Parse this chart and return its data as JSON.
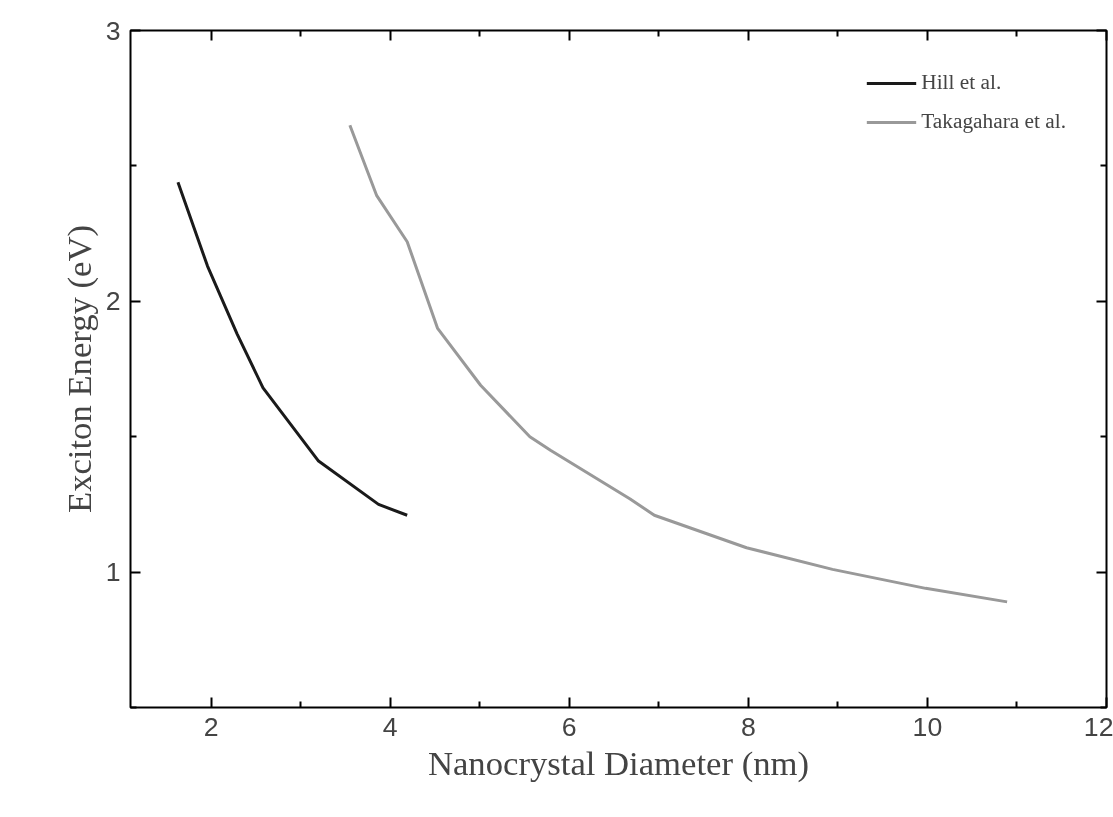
{
  "chart_data": {
    "type": "line",
    "xlabel": "Nanocrystal Diameter (nm)",
    "ylabel": "Exciton Energy (eV)",
    "xlim": [
      1.1,
      12
    ],
    "ylim": [
      0.5,
      3
    ],
    "xticks": [
      2,
      4,
      6,
      8,
      10,
      12
    ],
    "yticks": [
      1,
      2,
      3
    ],
    "grid": false,
    "legend": "top right",
    "marker": "none",
    "line_style": "solid",
    "series": [
      {
        "name": "Hill et al.",
        "color": "#1a1a1a",
        "x": [
          1.63,
          1.96,
          2.29,
          2.58,
          3.2,
          3.87,
          4.19
        ],
        "values": [
          2.44,
          2.13,
          1.88,
          1.68,
          1.41,
          1.25,
          1.21
        ]
      },
      {
        "name": "Takagahara et al.",
        "color": "#999999",
        "x": [
          3.55,
          3.85,
          4.19,
          4.53,
          5.01,
          5.56,
          5.79,
          6.68,
          6.95,
          7.98,
          8.94,
          9.98,
          10.89
        ],
        "values": [
          2.65,
          2.39,
          2.22,
          1.9,
          1.69,
          1.5,
          1.45,
          1.27,
          1.21,
          1.09,
          1.01,
          0.94,
          0.89
        ]
      }
    ]
  }
}
